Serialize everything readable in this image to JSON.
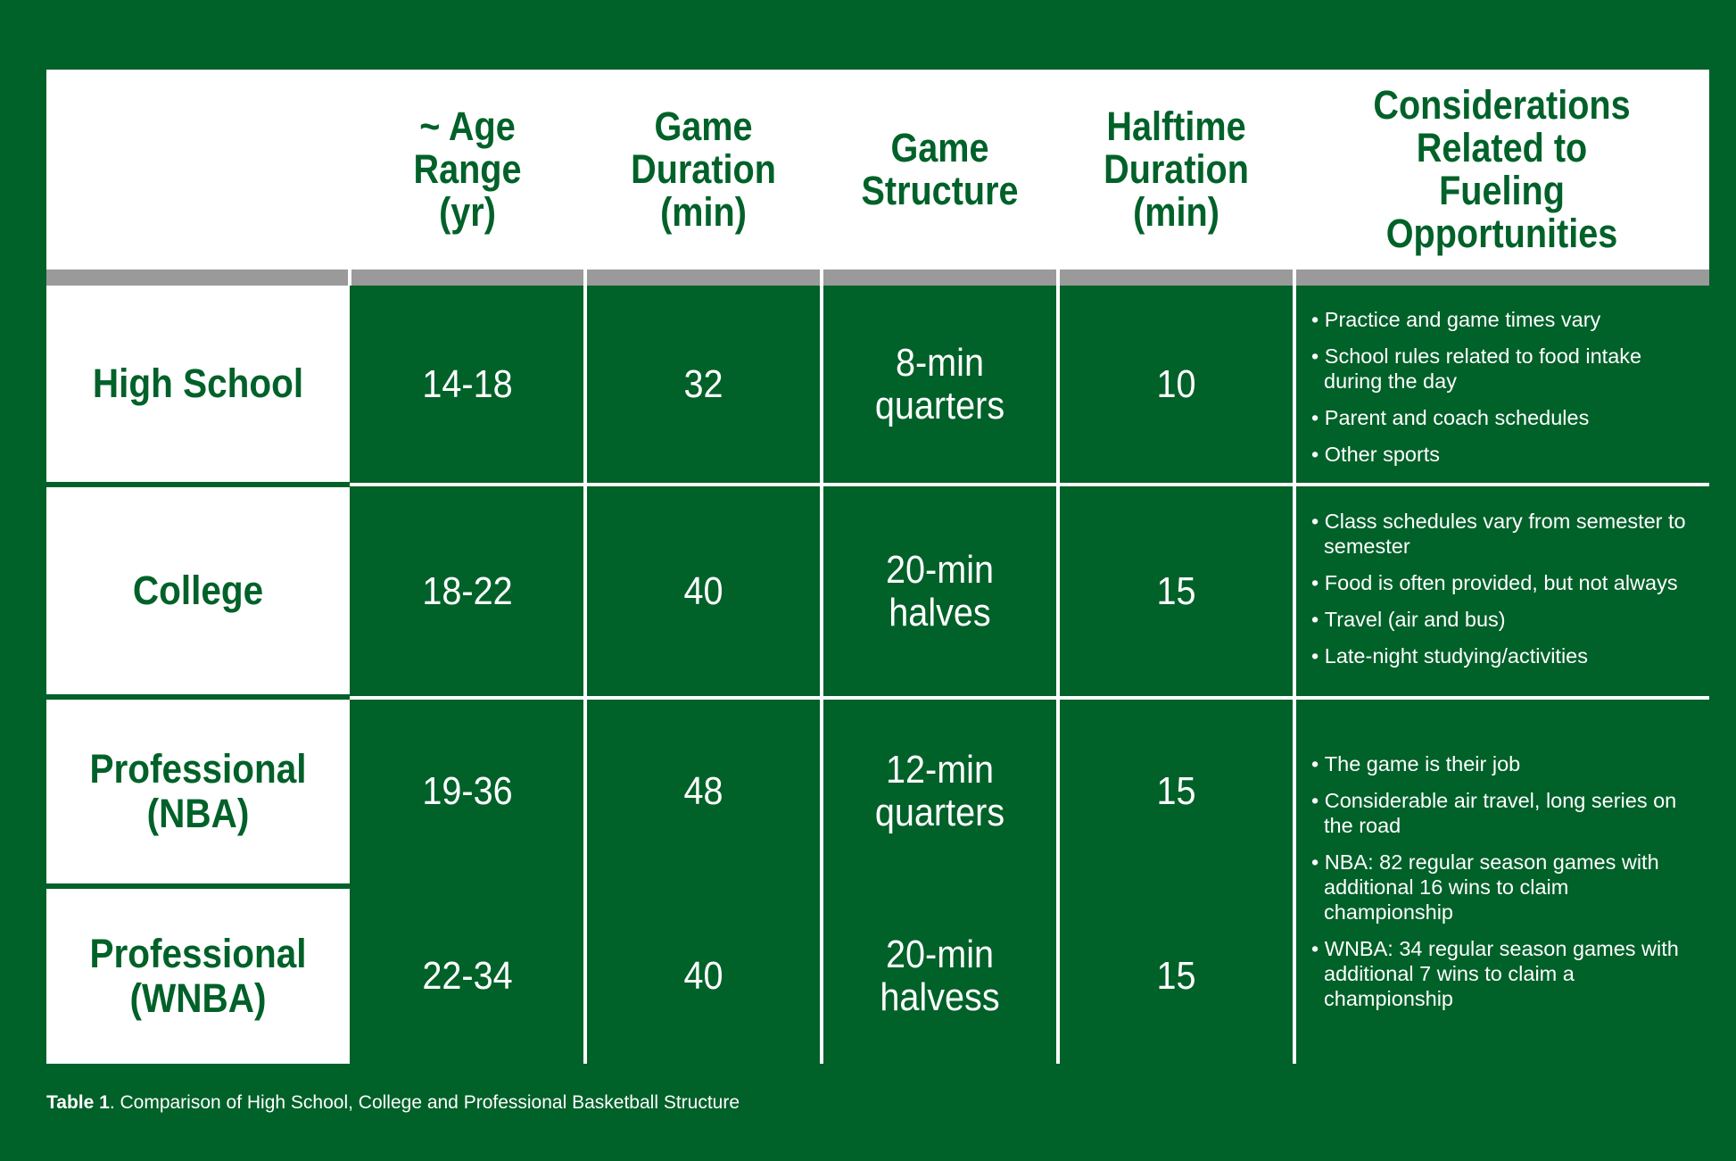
{
  "table": {
    "headers": {
      "age": [
        "~ Age",
        "Range",
        "(yr)"
      ],
      "duration": [
        "Game",
        "Duration",
        "(min)"
      ],
      "structure": [
        "Game",
        "Structure"
      ],
      "halftime": [
        "Halftime",
        "Duration",
        "(min)"
      ],
      "considerations": [
        "Considerations",
        "Related to",
        "Fueling Opportunities"
      ]
    },
    "rows": [
      {
        "label": [
          "High School"
        ],
        "age": "14-18",
        "duration": "32",
        "structure": [
          "8-min",
          "quarters"
        ],
        "halftime": "10",
        "considerations": [
          "Practice and game times vary",
          "School rules related to food intake during the day",
          "Parent and coach schedules",
          "Other sports"
        ]
      },
      {
        "label": [
          "College"
        ],
        "age": "18-22",
        "duration": "40",
        "structure": [
          "20-min",
          "halves"
        ],
        "halftime": "15",
        "considerations": [
          "Class schedules vary from semester to semester",
          "Food is often provided, but not always",
          "Travel (air and bus)",
          "Late-night studying/activities"
        ]
      },
      {
        "label": [
          "Professional",
          "(NBA)"
        ],
        "age": "19-36",
        "duration": "48",
        "structure": [
          "12-min",
          "quarters"
        ],
        "halftime": "15"
      },
      {
        "label": [
          "Professional",
          "(WNBA)"
        ],
        "age": "22-34",
        "duration": "40",
        "structure": [
          "20-min",
          "halvess"
        ],
        "halftime": "15"
      }
    ],
    "professional_considerations": [
      "The game is their job",
      "Considerable air travel, long series on the road",
      "NBA: 82 regular season games with additional 16 wins to claim championship",
      "WNBA: 34 regular season games with additional 7 wins to claim a championship"
    ]
  },
  "caption": {
    "label": "Table 1",
    "text": ". Comparison of High School, College and Professional Basketball Structure"
  },
  "colors": {
    "brand_green": "#006129",
    "header_bg": "#ffffff",
    "separator_gray": "#9a9a9a"
  }
}
